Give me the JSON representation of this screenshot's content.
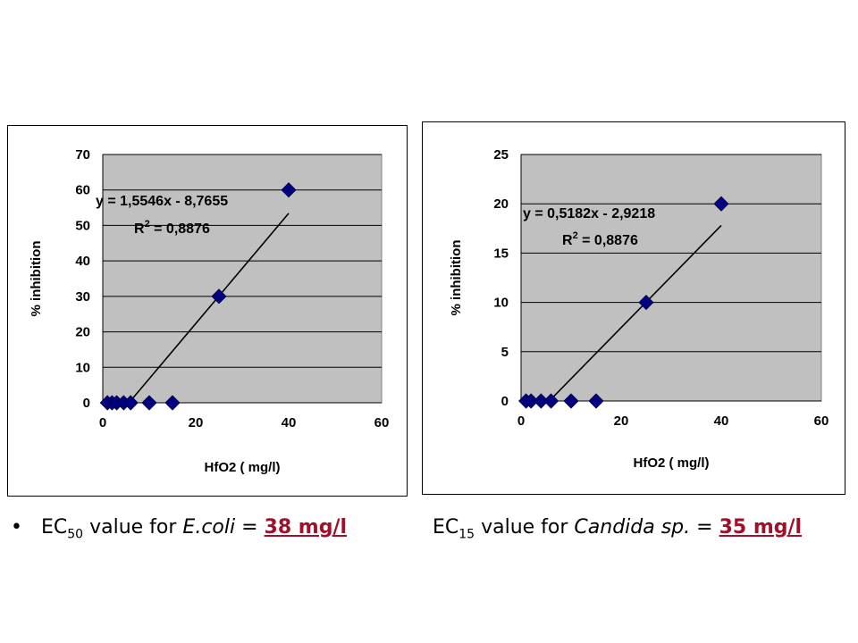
{
  "chart_data": [
    {
      "type": "scatter",
      "xlabel": "HfO2 ( mg/l)",
      "ylabel": "% inhibition",
      "xlim": [
        0,
        60
      ],
      "ylim": [
        0,
        70
      ],
      "xticks": [
        "0",
        "20",
        "40",
        "60"
      ],
      "yticks": [
        "0",
        "10",
        "20",
        "30",
        "40",
        "50",
        "60",
        "70"
      ],
      "grid": true,
      "plot_background": "#c0c0c0",
      "marker_color": "#000080",
      "x": [
        1,
        2,
        3,
        4.5,
        6,
        10,
        15,
        25,
        40
      ],
      "y": [
        0,
        0,
        0,
        0,
        0,
        0,
        0,
        30,
        60
      ],
      "trendline": {
        "slope": 1.5546,
        "intercept": -8.7655,
        "x_from": 6,
        "x_to": 40
      },
      "equation_label": "y = 1,5546x - 8,7655",
      "r2_prefix": "R",
      "r2_sup": "2",
      "r2_value": " = 0,8876"
    },
    {
      "type": "scatter",
      "xlabel": "HfO2 ( mg/l)",
      "ylabel": "% inhibition",
      "xlim": [
        0,
        60
      ],
      "ylim": [
        0,
        25
      ],
      "xticks": [
        "0",
        "20",
        "40",
        "60"
      ],
      "yticks": [
        "0",
        "5",
        "10",
        "15",
        "20",
        "25"
      ],
      "grid": true,
      "plot_background": "#c0c0c0",
      "marker_color": "#000080",
      "x": [
        1,
        2,
        4,
        6,
        10,
        15,
        25,
        40
      ],
      "y": [
        0,
        0,
        0,
        0,
        0,
        0,
        10,
        20
      ],
      "trendline": {
        "slope": 0.5182,
        "intercept": -2.9218,
        "x_from": 6,
        "x_to": 40
      },
      "equation_label": "y = 0,5182x - 2,9218",
      "r2_prefix": "R",
      "r2_sup": "2",
      "r2_value": " = 0,8876"
    }
  ],
  "captions": {
    "left": {
      "bullet": "•",
      "prefix": "EC",
      "sub": "50",
      "mid": " value for ",
      "organism": "E.coli",
      "eq": " = ",
      "result": "38 mg/l"
    },
    "right": {
      "prefix": "EC",
      "sub": "15",
      "mid": " value for ",
      "organism": "Candida sp.",
      "eq": " = ",
      "result": "35 mg/l"
    }
  }
}
